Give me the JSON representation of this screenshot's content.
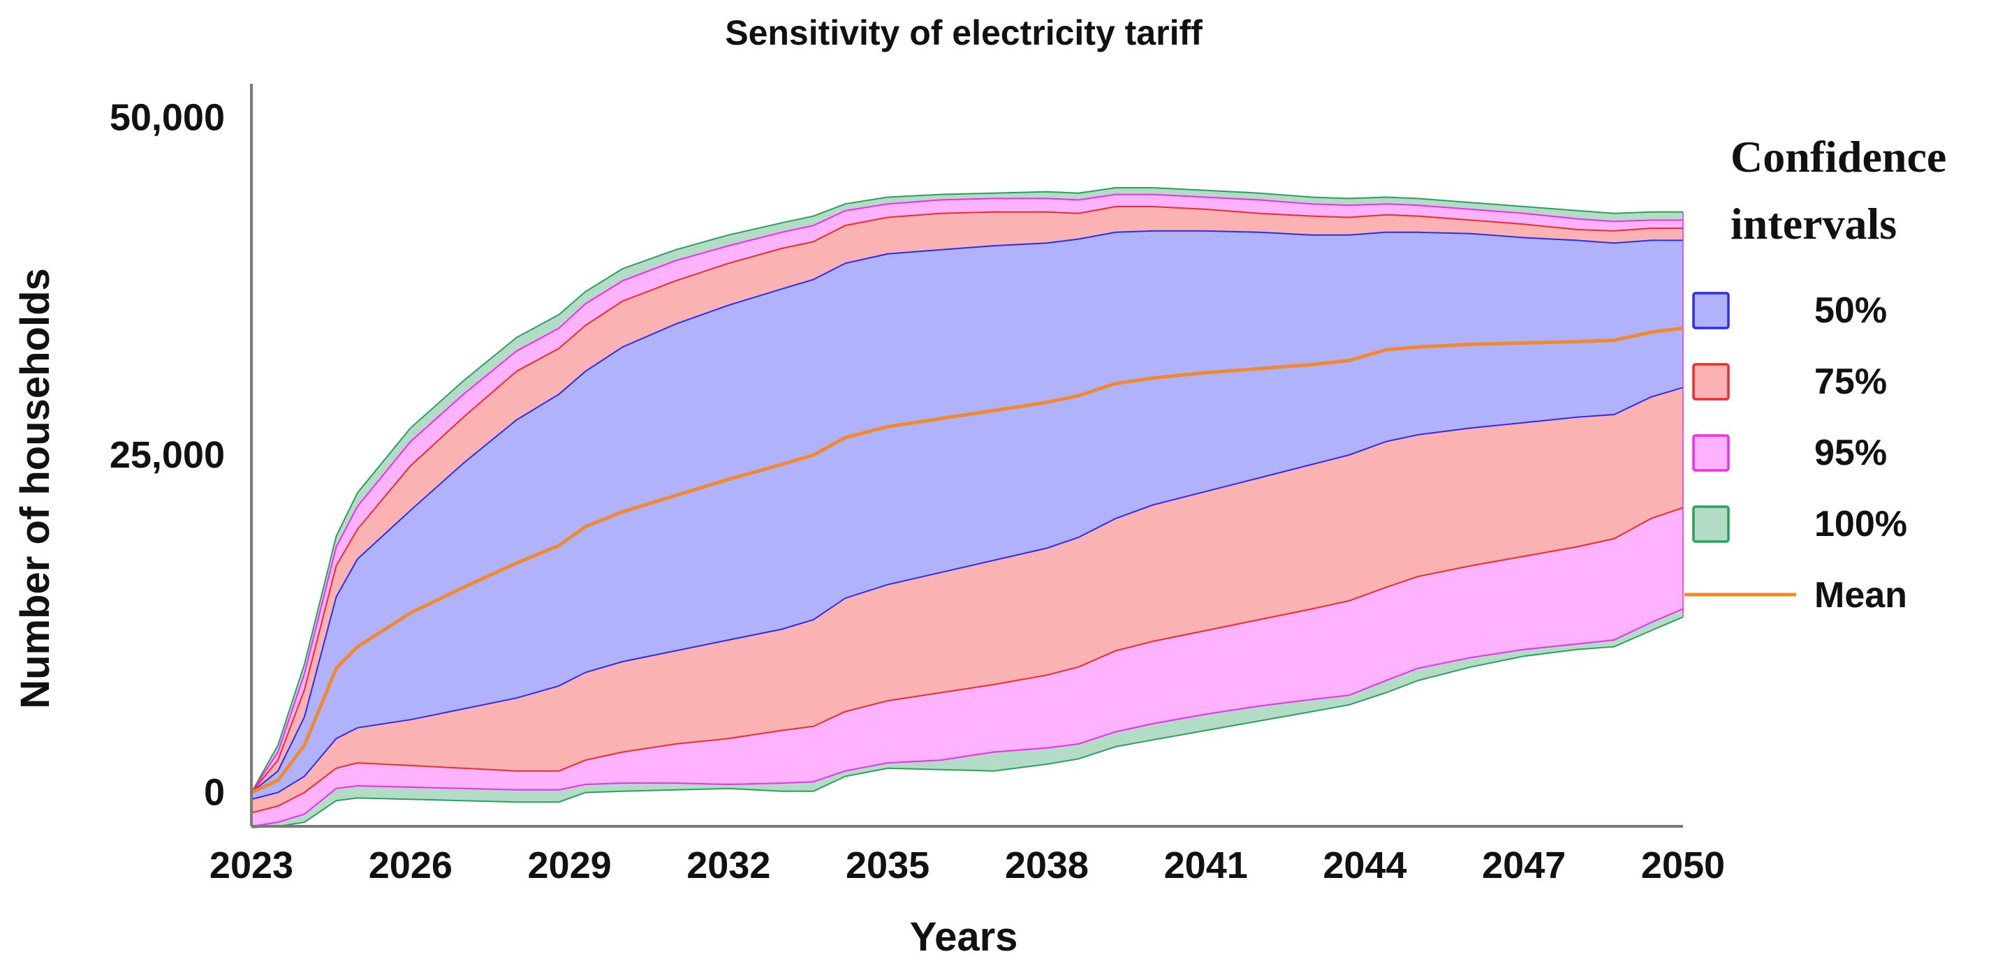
{
  "chart_data": {
    "type": "area",
    "title": "Sensitivity of electricity tariff",
    "xlabel": "Years",
    "ylabel": "Number of households",
    "xlim": [
      2023,
      2050
    ],
    "ylim": [
      -2500,
      52500
    ],
    "x_ticks": [
      2023,
      2026,
      2029,
      2032,
      2035,
      2038,
      2041,
      2044,
      2047,
      2050
    ],
    "y_ticks": [
      0,
      25000,
      50000
    ],
    "y_tick_labels": [
      "0",
      "25,000",
      "50,000"
    ],
    "x_tick_labels": [
      "2023",
      "2026",
      "2029",
      "2032",
      "2035",
      "2038",
      "2041",
      "2044",
      "2047",
      "2050"
    ],
    "legend": {
      "title_line1": "Confidence",
      "title_line2": "intervals",
      "placement": "right",
      "items": [
        {
          "label": "50%",
          "key": "ci50"
        },
        {
          "label": "75%",
          "key": "ci75"
        },
        {
          "label": "95%",
          "key": "ci95"
        },
        {
          "label": "100%",
          "key": "ci100"
        },
        {
          "label": "Mean",
          "key": "mean"
        }
      ]
    },
    "colors": {
      "ci50_fill": "#b0b2fb",
      "ci50_edge": "#2b2cf0",
      "ci75_fill": "#fbb2b2",
      "ci75_edge": "#f02b2b",
      "ci95_fill": "#ffb3ff",
      "ci95_edge": "#f02bf0",
      "ci100_fill": "#b2dcc6",
      "ci100_edge": "#2ca05a",
      "mean_line": "#f08a2c",
      "axis": "#7a7a7a"
    },
    "x": [
      2023,
      2023.5,
      2024,
      2024.6,
      2025,
      2026,
      2027,
      2028,
      2028.8,
      2029.3,
      2030,
      2031,
      2032,
      2033,
      2033.6,
      2034.2,
      2035,
      2036,
      2037,
      2038,
      2038.6,
      2039.3,
      2040,
      2041,
      2042,
      2043,
      2043.7,
      2044.4,
      2045,
      2046,
      2047,
      2048,
      2048.7,
      2049.4,
      2050
    ],
    "series": [
      {
        "name": "100% upper",
        "values": [
          0,
          3500,
          9500,
          19000,
          22200,
          27000,
          30500,
          33700,
          35400,
          37100,
          38800,
          40200,
          41300,
          42200,
          42700,
          43600,
          44100,
          44300,
          44400,
          44500,
          44400,
          44800,
          44800,
          44600,
          44400,
          44100,
          44000,
          44100,
          44000,
          43700,
          43400,
          43100,
          42900,
          43000,
          43000
        ]
      },
      {
        "name": "95% upper",
        "values": [
          0,
          3000,
          8800,
          18200,
          21200,
          26000,
          29500,
          32700,
          34400,
          36200,
          37900,
          39400,
          40500,
          41500,
          42000,
          43100,
          43600,
          43900,
          44000,
          44000,
          43900,
          44300,
          44300,
          44100,
          43900,
          43600,
          43500,
          43600,
          43500,
          43200,
          42900,
          42500,
          42300,
          42400,
          42400
        ]
      },
      {
        "name": "75% upper",
        "values": [
          0,
          2400,
          7600,
          16800,
          19500,
          24200,
          27800,
          31200,
          32900,
          34600,
          36400,
          37900,
          39200,
          40300,
          40800,
          42000,
          42600,
          42900,
          43000,
          43000,
          42900,
          43400,
          43400,
          43200,
          42900,
          42700,
          42600,
          42800,
          42700,
          42400,
          42100,
          41700,
          41600,
          41800,
          41800
        ]
      },
      {
        "name": "50% upper",
        "values": [
          0,
          1600,
          5600,
          14500,
          17300,
          20900,
          24400,
          27600,
          29500,
          31200,
          33000,
          34700,
          36100,
          37300,
          38000,
          39200,
          39900,
          40200,
          40500,
          40700,
          41000,
          41500,
          41600,
          41600,
          41500,
          41300,
          41300,
          41500,
          41500,
          41400,
          41100,
          40900,
          40700,
          40900,
          40900
        ]
      },
      {
        "name": "Mean",
        "values": [
          0,
          900,
          3500,
          9200,
          10800,
          13300,
          15200,
          17000,
          18300,
          19700,
          20800,
          22000,
          23200,
          24300,
          25000,
          26300,
          27100,
          27700,
          28300,
          28900,
          29400,
          30300,
          30700,
          31100,
          31400,
          31700,
          32000,
          32800,
          33000,
          33200,
          33300,
          33400,
          33500,
          34100,
          34400
        ]
      },
      {
        "name": "50% lower",
        "values": [
          -500,
          0,
          1200,
          4000,
          4800,
          5400,
          6200,
          7000,
          7900,
          8900,
          9700,
          10500,
          11300,
          12100,
          12800,
          14400,
          15400,
          16300,
          17200,
          18100,
          18900,
          20300,
          21300,
          22300,
          23300,
          24300,
          25000,
          26000,
          26500,
          27000,
          27400,
          27800,
          28000,
          29300,
          30000
        ]
      },
      {
        "name": "75% lower",
        "values": [
          -1500,
          -1000,
          0,
          1800,
          2200,
          2000,
          1800,
          1600,
          1600,
          2400,
          3000,
          3600,
          4000,
          4600,
          4900,
          6000,
          6800,
          7400,
          8000,
          8700,
          9300,
          10500,
          11200,
          12000,
          12800,
          13600,
          14200,
          15200,
          16000,
          16800,
          17500,
          18200,
          18800,
          20300,
          21100
        ]
      },
      {
        "name": "95% lower",
        "values": [
          -2500,
          -2200,
          -1600,
          300,
          500,
          400,
          300,
          200,
          200,
          600,
          700,
          700,
          600,
          700,
          800,
          1600,
          2200,
          2400,
          3000,
          3300,
          3600,
          4500,
          5100,
          5800,
          6400,
          6900,
          7200,
          8300,
          9200,
          10000,
          10600,
          11000,
          11300,
          12600,
          13600
        ]
      },
      {
        "name": "100% lower",
        "values": [
          -2600,
          -2500,
          -2200,
          -600,
          -400,
          -500,
          -600,
          -700,
          -700,
          0,
          100,
          200,
          300,
          100,
          100,
          1200,
          1800,
          1700,
          1600,
          2100,
          2500,
          3400,
          3900,
          4600,
          5300,
          6000,
          6500,
          7400,
          8300,
          9300,
          10100,
          10600,
          10800,
          12000,
          13000
        ]
      }
    ]
  }
}
